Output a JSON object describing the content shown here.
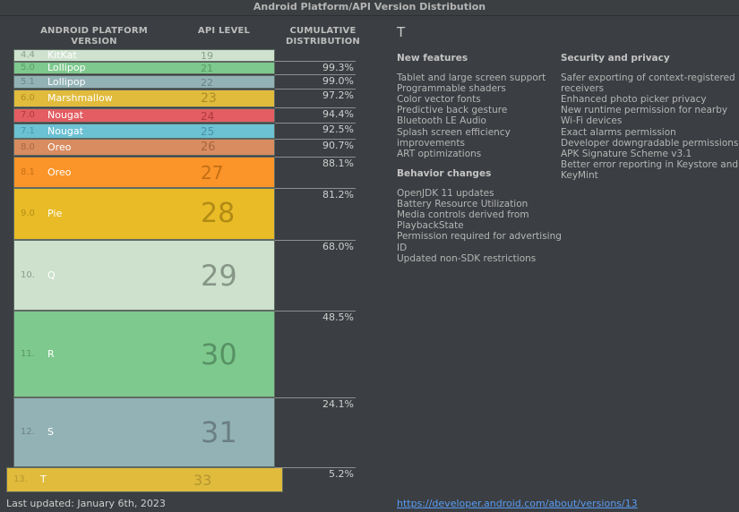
{
  "window": {
    "title": "Android Platform/API Version Distribution"
  },
  "table": {
    "headers": {
      "version": "ANDROID PLATFORM VERSION",
      "api": "API LEVEL",
      "cumulative": "CUMULATIVE DISTRIBUTION"
    },
    "rows": [
      {
        "version": "4.4",
        "name": "KitKat",
        "api": "19",
        "cumulative": "",
        "color": "#cfe2cf",
        "text_color": "#6d8a6d"
      },
      {
        "version": "5.0",
        "name": "Lollipop",
        "api": "21",
        "cumulative": "99.3%",
        "color": "#7ec98e",
        "text_color": "#4c8a5b"
      },
      {
        "version": "5.1",
        "name": "Lollipop",
        "api": "22",
        "cumulative": "99.0%",
        "color": "#93b2b6",
        "text_color": "#5a7478"
      },
      {
        "version": "6.0",
        "name": "Marshmallow",
        "api": "23",
        "cumulative": "97.2%",
        "color": "#e0bb3c",
        "text_color": "#9c7d18"
      },
      {
        "version": "7.0",
        "name": "Nougat",
        "api": "24",
        "cumulative": "94.4%",
        "color": "#e35d62",
        "text_color": "#9d2e33"
      },
      {
        "version": "7.1",
        "name": "Nougat",
        "api": "25",
        "cumulative": "92.5%",
        "color": "#6cc1d3",
        "text_color": "#3c8494"
      },
      {
        "version": "8.0",
        "name": "Oreo",
        "api": "26",
        "cumulative": "90.7%",
        "color": "#d88c60",
        "text_color": "#975834"
      },
      {
        "version": "8.1",
        "name": "Oreo",
        "api": "27",
        "cumulative": "88.1%",
        "color": "#fb9429",
        "text_color": "#b0620e"
      },
      {
        "version": "9.0",
        "name": "Pie",
        "api": "28",
        "cumulative": "81.2%",
        "color": "#e9bb27",
        "text_color": "#9f7c0e"
      },
      {
        "version": "10.",
        "name": "Q",
        "api": "29",
        "cumulative": "68.0%",
        "color": "#cde1cd",
        "text_color": "#707d70"
      },
      {
        "version": "11.",
        "name": "R",
        "api": "30",
        "cumulative": "48.5%",
        "color": "#7ec98e",
        "text_color": "#4a8058"
      },
      {
        "version": "12.",
        "name": "S",
        "api": "31",
        "cumulative": "24.1%",
        "color": "#93b2b6",
        "text_color": "#5d6f72"
      },
      {
        "version": "13.",
        "name": "T",
        "api": "33",
        "cumulative": "5.2%",
        "color": "#e0bb3c",
        "text_color": "#a68a2c"
      }
    ]
  },
  "footer": {
    "last_updated": "Last updated: January 6th, 2023"
  },
  "details": {
    "title": "T",
    "new_features": {
      "heading": "New features",
      "items": [
        "Tablet and large screen support",
        "Programmable shaders",
        "Color vector fonts",
        "Predictive back gesture",
        "Bluetooth LE Audio",
        "Splash screen efficiency",
        "improvements",
        "ART optimizations"
      ]
    },
    "behavior_changes": {
      "heading": "Behavior changes",
      "items": [
        "OpenJDK 11 updates",
        "Battery Resource Utilization",
        "Media controls derived from",
        "PlaybackState",
        "Permission required for advertising",
        "ID",
        "Updated non-SDK restrictions"
      ]
    },
    "security_privacy": {
      "heading": "Security and privacy",
      "items": [
        "Safer exporting of context-registered",
        "receivers",
        "Enhanced photo picker privacy",
        "New runtime permission for nearby",
        "Wi-Fi devices",
        "Exact alarms permission",
        "Developer downgradable permissions",
        "APK Signature Scheme v3.1",
        "Better error reporting in Keystore and",
        "KeyMint"
      ]
    },
    "link": "https://developer.android.com/about/versions/13"
  }
}
